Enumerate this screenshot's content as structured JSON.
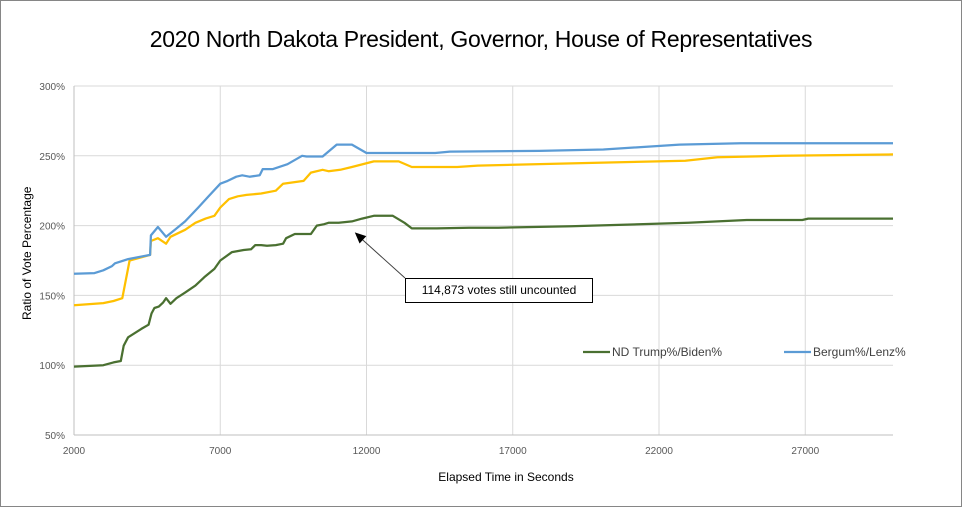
{
  "chart_data": {
    "type": "line",
    "title": "2020 North Dakota President, Governor, House of Representatives",
    "xlabel": "Elapsed Time in Seconds",
    "ylabel": "Ratio of Vote Percentage",
    "xlim": [
      2000,
      30000
    ],
    "ylim": [
      50,
      300
    ],
    "x_ticks": [
      "2000",
      "7000",
      "12000",
      "17000",
      "22000",
      "27000"
    ],
    "x_tick_values": [
      2000,
      7000,
      12000,
      17000,
      22000,
      27000
    ],
    "y_ticks": [
      "50%",
      "100%",
      "150%",
      "200%",
      "250%",
      "300%"
    ],
    "y_tick_values": [
      50,
      100,
      150,
      200,
      250,
      300
    ],
    "grid": true,
    "legend_position": "lower-right",
    "annotation": {
      "text": "114,873  votes still uncounted",
      "points_to": {
        "x": 11600,
        "y": 198
      }
    },
    "series": [
      {
        "name": "ND Trump%/Biden%",
        "color": "#4A7031",
        "in_legend": true,
        "points": [
          [
            2000,
            99
          ],
          [
            3000,
            100
          ],
          [
            3350,
            102
          ],
          [
            3600,
            103
          ],
          [
            3700,
            114
          ],
          [
            3850,
            120
          ],
          [
            4300,
            126
          ],
          [
            4550,
            129
          ],
          [
            4650,
            137
          ],
          [
            4750,
            141
          ],
          [
            4900,
            142
          ],
          [
            5050,
            145
          ],
          [
            5150,
            148
          ],
          [
            5300,
            144
          ],
          [
            5500,
            148
          ],
          [
            5800,
            152
          ],
          [
            6150,
            157
          ],
          [
            6450,
            163
          ],
          [
            6800,
            169
          ],
          [
            7000,
            175
          ],
          [
            7400,
            181
          ],
          [
            7800,
            182.5
          ],
          [
            8050,
            183
          ],
          [
            8200,
            186
          ],
          [
            8400,
            186
          ],
          [
            8600,
            185.5
          ],
          [
            8900,
            186
          ],
          [
            9150,
            187
          ],
          [
            9250,
            191
          ],
          [
            9550,
            194
          ],
          [
            9850,
            194
          ],
          [
            10100,
            194
          ],
          [
            10300,
            200
          ],
          [
            10550,
            201
          ],
          [
            10700,
            202
          ],
          [
            11050,
            202
          ],
          [
            11500,
            203
          ],
          [
            11850,
            205
          ],
          [
            12250,
            207
          ],
          [
            12700,
            207
          ],
          [
            12900,
            207
          ],
          [
            13300,
            202
          ],
          [
            13550,
            198
          ],
          [
            14400,
            198
          ],
          [
            15500,
            198.5
          ],
          [
            16500,
            198.5
          ],
          [
            19000,
            199.5
          ],
          [
            23000,
            202
          ],
          [
            25000,
            204
          ],
          [
            26900,
            204
          ],
          [
            27100,
            205
          ],
          [
            30000,
            205
          ]
        ]
      },
      {
        "name": "Bergum%/Lenz%",
        "color": "#5B9BD5",
        "in_legend": true,
        "points": [
          [
            2000,
            165.5
          ],
          [
            2700,
            166
          ],
          [
            3000,
            168
          ],
          [
            3300,
            171
          ],
          [
            3400,
            173
          ],
          [
            3850,
            176
          ],
          [
            4600,
            179
          ],
          [
            4630,
            193
          ],
          [
            4870,
            199
          ],
          [
            5150,
            192
          ],
          [
            5450,
            197
          ],
          [
            5800,
            203
          ],
          [
            6250,
            213
          ],
          [
            6600,
            221
          ],
          [
            7000,
            230
          ],
          [
            7250,
            232
          ],
          [
            7550,
            235
          ],
          [
            7750,
            236
          ],
          [
            8000,
            235
          ],
          [
            8350,
            236
          ],
          [
            8450,
            240.5
          ],
          [
            8800,
            240.5
          ],
          [
            9300,
            244
          ],
          [
            9800,
            250
          ],
          [
            9950,
            249.5
          ],
          [
            10500,
            249.5
          ],
          [
            10980,
            258
          ],
          [
            11500,
            258
          ],
          [
            12000,
            252
          ],
          [
            12750,
            252
          ],
          [
            14350,
            252
          ],
          [
            14850,
            253
          ],
          [
            17900,
            253.5
          ],
          [
            20100,
            254.5
          ],
          [
            22700,
            258
          ],
          [
            24800,
            259
          ],
          [
            30000,
            259
          ]
        ]
      },
      {
        "name": "",
        "color": "#FFC000",
        "in_legend": false,
        "points": [
          [
            2000,
            143
          ],
          [
            3000,
            144.5
          ],
          [
            3350,
            146
          ],
          [
            3650,
            148
          ],
          [
            3900,
            175
          ],
          [
            4600,
            179
          ],
          [
            4630,
            189
          ],
          [
            4870,
            191
          ],
          [
            5150,
            187
          ],
          [
            5300,
            192
          ],
          [
            5800,
            197
          ],
          [
            6150,
            202
          ],
          [
            6500,
            205
          ],
          [
            6800,
            207
          ],
          [
            7000,
            213
          ],
          [
            7300,
            219
          ],
          [
            7600,
            221
          ],
          [
            7900,
            222
          ],
          [
            8400,
            223
          ],
          [
            8900,
            225
          ],
          [
            9150,
            230
          ],
          [
            9850,
            232
          ],
          [
            10100,
            238
          ],
          [
            10500,
            240
          ],
          [
            10700,
            239
          ],
          [
            11100,
            240
          ],
          [
            11500,
            242
          ],
          [
            12250,
            246
          ],
          [
            12700,
            246
          ],
          [
            13100,
            246
          ],
          [
            13550,
            242
          ],
          [
            15100,
            242
          ],
          [
            15800,
            243
          ],
          [
            19900,
            245
          ],
          [
            22900,
            246.5
          ],
          [
            24000,
            249
          ],
          [
            26200,
            250
          ],
          [
            30000,
            251
          ]
        ]
      }
    ]
  }
}
